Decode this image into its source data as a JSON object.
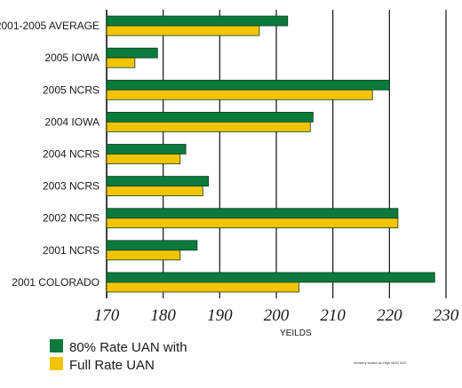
{
  "chart_data": {
    "type": "bar",
    "orientation": "horizontal",
    "categories": [
      "2001-2005 AVERAGE",
      "2005 IOWA",
      "2005 NCRS",
      "2004 IOWA",
      "2004 NCRS",
      "2003 NCRS",
      "2002 NCRS",
      "2001 NCRS",
      "2001 COLORADO"
    ],
    "series": [
      {
        "name": "80% Rate UAN with",
        "color": "#0c7a3c",
        "values": [
          202,
          179,
          220,
          206.5,
          184,
          188,
          221.5,
          186,
          228
        ]
      },
      {
        "name": "Full Rate UAN",
        "color": "#f5c400",
        "values": [
          197,
          175,
          217,
          206,
          183,
          187,
          221.5,
          183,
          204
        ]
      }
    ],
    "xlabel": "YEILDS",
    "xlim": [
      170,
      230
    ],
    "xticks": [
      170,
      180,
      190,
      200,
      210,
      220,
      230
    ],
    "grid": true,
    "legend": "bottom-left",
    "footnote": "formerly tested as High NRG 500"
  }
}
